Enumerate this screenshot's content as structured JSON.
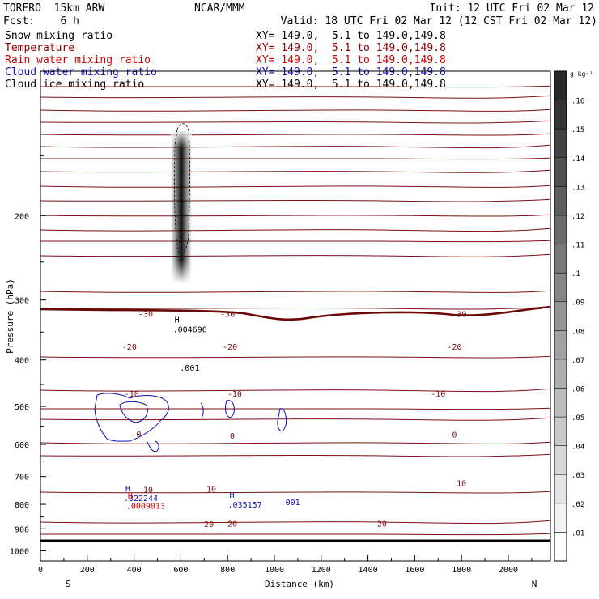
{
  "header": {
    "model": "TORERO  15km ARW",
    "center": "NCAR/MMM",
    "init": "Init: 12 UTC Fri 02 Mar 12",
    "fcst": "Fcst:    6 h",
    "valid": "Valid: 18 UTC Fri 02 Mar 12 (12 CST Fri 02 Mar 12)"
  },
  "fields": [
    {
      "name": "Snow mixing ratio",
      "xy": "XY= 149.0,  5.1 to 149.0,149.8",
      "color": "#000000"
    },
    {
      "name": "Temperature",
      "xy": "XY= 149.0,  5.1 to 149.0,149.8",
      "color": "#8b0000"
    },
    {
      "name": "Rain water mixing ratio",
      "xy": "XY= 149.0,  5.1 to 149.0,149.8",
      "color": "#cc0000"
    },
    {
      "name": "Cloud water mixing ratio",
      "xy": "XY= 149.0,  5.1 to 149.0,149.8",
      "color": "#1010b0"
    },
    {
      "name": "Cloud ice mixing ratio",
      "xy": "XY= 149.0,  5.1 to 149.0,149.8",
      "color": "#000000"
    }
  ],
  "chart_data": {
    "type": "cross-section",
    "ylabel": "Pressure (hPa)",
    "xlabel": "Distance (km)",
    "x_ticks": [
      0,
      200,
      400,
      600,
      800,
      1000,
      1200,
      1400,
      1600,
      1800,
      2000
    ],
    "y_ticks": [
      200,
      300,
      400,
      500,
      600,
      700,
      800,
      900,
      1000
    ],
    "xlim": [
      0,
      2180
    ],
    "ylim": [
      1050,
      100
    ],
    "y_scale": "log",
    "left_label": "S",
    "right_label": "N",
    "colorbar": {
      "unit": "g kg⁻¹",
      "levels": [
        ".01",
        ".02",
        ".03",
        ".04",
        ".05",
        ".06",
        ".07",
        ".08",
        ".09",
        ".1",
        ".11",
        ".12",
        ".13",
        ".14",
        ".15",
        ".16"
      ]
    },
    "temperature_labels": [
      {
        "text": "-30",
        "x": 450,
        "p": 320
      },
      {
        "text": "-30",
        "x": 800,
        "p": 320
      },
      {
        "text": "-30",
        "x": 1790,
        "p": 320
      },
      {
        "text": "-20",
        "x": 380,
        "p": 375
      },
      {
        "text": "-20",
        "x": 810,
        "p": 375
      },
      {
        "text": "-20",
        "x": 1770,
        "p": 375
      },
      {
        "text": "-10",
        "x": 390,
        "p": 470
      },
      {
        "text": "-10",
        "x": 830,
        "p": 470
      },
      {
        "text": "-10",
        "x": 1700,
        "p": 470
      },
      {
        "text": "0",
        "x": 420,
        "p": 570
      },
      {
        "text": "0",
        "x": 820,
        "p": 575
      },
      {
        "text": "0",
        "x": 1770,
        "p": 572
      },
      {
        "text": "10",
        "x": 460,
        "p": 745
      },
      {
        "text": "10",
        "x": 730,
        "p": 742
      },
      {
        "text": "10",
        "x": 1800,
        "p": 722
      },
      {
        "text": "20",
        "x": 720,
        "p": 878
      },
      {
        "text": "20",
        "x": 820,
        "p": 877
      },
      {
        "text": "20",
        "x": 1460,
        "p": 877
      }
    ],
    "max_labels": [
      {
        "marker": "H",
        "value": ".004696",
        "x": 580,
        "p": 345,
        "color": "#000000"
      },
      {
        "marker": "",
        "value": ".001",
        "x": 610,
        "p": 415,
        "color": "#000000"
      },
      {
        "marker": "H",
        "value": ".322244",
        "x": 370,
        "p": 775,
        "color": "#1010b0"
      },
      {
        "marker": "H",
        "value": ".0009013",
        "x": 380,
        "p": 805,
        "color": "#cc0000"
      },
      {
        "marker": "H",
        "value": ".035157",
        "x": 815,
        "p": 800,
        "color": "#1010b0"
      },
      {
        "marker": "",
        "value": ".001",
        "x": 1040,
        "p": 790,
        "color": "#1010b0"
      }
    ]
  }
}
